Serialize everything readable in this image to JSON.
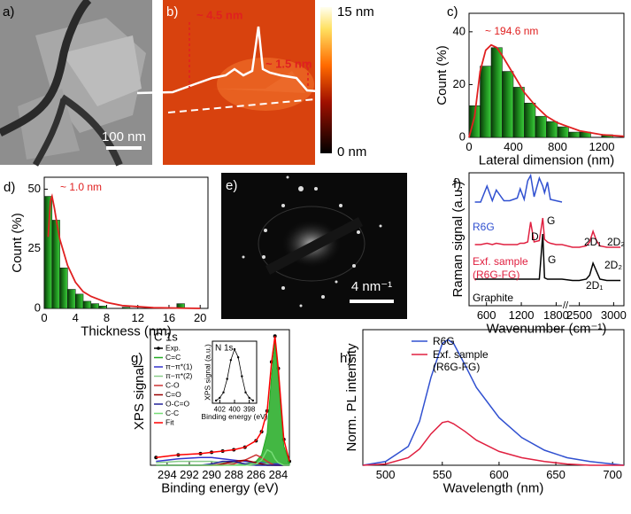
{
  "images": [
    {
      "label": "a)",
      "scale_bar": "100 nm"
    },
    {
      "label": "b)",
      "annotations": [
        "~ 4.5 nm",
        "~ 1.5 nm"
      ],
      "colorbar": [
        "15 nm",
        "0 nm"
      ]
    },
    {
      "label": "e)",
      "scale_bar": "4 nm⁻¹"
    }
  ],
  "chart_data": [
    {
      "type": "histogram",
      "panel_label": "c)",
      "xlabel": "Lateral dimension (nm)",
      "ylabel": "Count (%)",
      "bins": [
        0,
        100,
        200,
        300,
        400,
        500,
        600,
        700,
        800,
        900,
        1000,
        1100,
        1200,
        1300
      ],
      "values": [
        12,
        27,
        34,
        25,
        19,
        13,
        8,
        6,
        4,
        2,
        2,
        0,
        1
      ],
      "curve": {
        "color": "#e02020",
        "x": [
          0,
          50,
          100,
          150,
          200,
          250,
          300,
          400,
          500,
          600,
          700,
          800,
          1000,
          1200,
          1400
        ],
        "values": [
          0,
          8,
          25,
          33,
          35,
          34,
          31,
          24,
          17,
          12,
          8,
          5.5,
          2.5,
          1,
          0.4
        ]
      },
      "xlim": [
        0,
        1400
      ],
      "xticks": [
        0,
        400,
        800,
        1200
      ],
      "ylim": [
        0,
        47
      ],
      "yticks": [
        0,
        20,
        40
      ],
      "annotations": [
        {
          "text": "~ 194.6 nm",
          "color": "#e02020"
        }
      ]
    },
    {
      "type": "histogram",
      "panel_label": "d)",
      "xlabel": "Thickness (nm)",
      "ylabel": "Count (%)",
      "bins": [
        0,
        1,
        2,
        3,
        4,
        5,
        6,
        7,
        8,
        9,
        10,
        11,
        12,
        13,
        14,
        15,
        16,
        17,
        18
      ],
      "values": [
        47,
        37,
        17,
        8,
        6,
        3,
        2,
        1,
        0,
        0,
        0.5,
        0,
        0,
        0,
        0,
        0,
        0,
        2
      ],
      "curve": {
        "color": "#e02020",
        "x": [
          0.5,
          0.8,
          1,
          1.3,
          1.6,
          2,
          3,
          4,
          5,
          6,
          8,
          10,
          14,
          20
        ],
        "values": [
          30,
          45,
          47,
          42,
          36,
          29,
          18,
          11,
          7,
          5,
          2.5,
          1.2,
          0.3,
          0
        ]
      },
      "xlim": [
        0,
        21
      ],
      "xticks": [
        0,
        4,
        8,
        12,
        16,
        20
      ],
      "ylim": [
        0,
        55
      ],
      "yticks": [
        0,
        25,
        50
      ],
      "annotations": [
        {
          "text": "~ 1.0 nm",
          "color": "#e02020"
        }
      ]
    },
    {
      "type": "line",
      "panel_label": "f)",
      "xlabel": "Wavenumber (cm⁻¹)",
      "ylabel": "Raman signal (a.u.)",
      "x": [
        400,
        500,
        610,
        700,
        770,
        900,
        1000,
        1130,
        1180,
        1250,
        1310,
        1360,
        1420,
        1510,
        1570,
        1600,
        1650,
        1700,
        1800,
        1900,
        2400,
        2500,
        2600,
        2650,
        2700,
        2750,
        2800,
        2900,
        3000,
        3100
      ],
      "series": [
        {
          "color": "#3050d0",
          "values": [
            7.8,
            7.8,
            9.0,
            7.9,
            8.7,
            7.9,
            7.9,
            8.1,
            8.8,
            8.0,
            9.4,
            9.8,
            8.2,
            9.6,
            9.0,
            8.5,
            9.3,
            8.0,
            7.9,
            7.8,
            null,
            null,
            null,
            null,
            null,
            null,
            null,
            null,
            null,
            null
          ]
        },
        {
          "color": "#e02040",
          "values": [
            4.6,
            4.6,
            4.7,
            4.6,
            4.7,
            4.6,
            4.6,
            4.6,
            4.7,
            4.7,
            4.8,
            6.3,
            4.8,
            4.9,
            6.6,
            5.0,
            4.8,
            4.7,
            4.6,
            4.6,
            4.4,
            4.4,
            4.5,
            4.8,
            5.6,
            4.9,
            4.5,
            4.4,
            4.4,
            4.4
          ]
        },
        {
          "color": "#000000",
          "values": [
            2,
            2,
            2,
            2,
            2,
            2,
            2,
            2,
            2,
            2,
            2,
            2,
            2,
            2,
            5.4,
            2.1,
            2,
            2,
            2,
            2,
            1.9,
            1.9,
            2,
            2.3,
            3.2,
            2.6,
            2,
            1.9,
            1.9,
            1.9
          ]
        }
      ],
      "xlim": [
        300,
        3150
      ],
      "xbreak": [
        1900,
        2350
      ],
      "xticks": [
        600,
        1200,
        1800,
        2500,
        3000
      ],
      "ylim": [
        0,
        10
      ],
      "annotations": [
        {
          "text": "R6G",
          "color": "#3050d0"
        },
        {
          "text": "D",
          "color": "#000000"
        },
        {
          "text": "G",
          "color": "#000000"
        },
        {
          "text": "2D₁",
          "color": "#000000"
        },
        {
          "text": "2D₂",
          "color": "#000000"
        },
        {
          "text": "Exf. sample",
          "color": "#e02040"
        },
        {
          "text": "(R6G-FG)",
          "color": "#e02040"
        },
        {
          "text": "G",
          "color": "#000000"
        },
        {
          "text": "2D₂",
          "color": "#000000"
        },
        {
          "text": "2D₁",
          "color": "#000000"
        },
        {
          "text": "Graphite",
          "color": "#000000"
        }
      ]
    },
    {
      "type": "line",
      "panel_label": "g)",
      "title": "C 1s",
      "xlabel": "Binding energy (eV)",
      "ylabel": "XPS signal",
      "x": [
        295,
        293,
        291,
        290,
        289,
        288,
        287,
        286,
        285.5,
        285,
        284.6,
        284.3,
        284,
        283.5,
        283
      ],
      "series": [
        {
          "name": "Exp.",
          "color": "#000000",
          "marker": true,
          "values": [
            0.6,
            0.8,
            0.9,
            1.0,
            1.1,
            1.2,
            1.4,
            1.9,
            2.6,
            4.2,
            8.0,
            10.0,
            7.5,
            2.0,
            0.3
          ]
        },
        {
          "name": "C=C",
          "color": "#22aa22",
          "fill": true,
          "values": [
            0,
            0,
            0,
            0,
            0,
            0,
            0.1,
            0.3,
            0.8,
            2.5,
            7.0,
            9.5,
            6.8,
            1.5,
            0.2
          ]
        },
        {
          "name": "π−π*(1)",
          "color": "#3333cc",
          "values": [
            0.3,
            0.5,
            0.6,
            0.6,
            0.5,
            0.4,
            0.3,
            0.2,
            0.2,
            0.1,
            0.1,
            0.1,
            0.1,
            0,
            0
          ]
        },
        {
          "name": "π−π*(2)",
          "color": "#88cc88",
          "values": [
            0.2,
            0.3,
            0.3,
            0.3,
            0.2,
            0.2,
            0.1,
            0.1,
            0.1,
            0.1,
            0,
            0,
            0,
            0,
            0
          ]
        },
        {
          "name": "C-O",
          "color": "#cc3333",
          "values": [
            0,
            0,
            0,
            0,
            0,
            0.1,
            0.4,
            0.8,
            0.6,
            0.3,
            0.1,
            0,
            0,
            0,
            0
          ]
        },
        {
          "name": "C=O",
          "color": "#990000",
          "values": [
            0,
            0,
            0,
            0,
            0.1,
            0.3,
            0.4,
            0.2,
            0.1,
            0,
            0,
            0,
            0,
            0,
            0
          ]
        },
        {
          "name": "O-C=O",
          "color": "#222299",
          "values": [
            0,
            0,
            0,
            0.1,
            0.3,
            0.3,
            0.1,
            0,
            0,
            0,
            0,
            0,
            0,
            0,
            0
          ]
        },
        {
          "name": "C-C",
          "color": "#77dd77",
          "values": [
            0,
            0,
            0,
            0,
            0,
            0,
            0,
            0.1,
            0.4,
            1.2,
            1.0,
            0.5,
            0.2,
            0,
            0
          ]
        },
        {
          "name": "Fit",
          "color": "#ff0000",
          "values": [
            0.6,
            0.8,
            0.9,
            1.0,
            1.1,
            1.2,
            1.4,
            1.9,
            2.6,
            4.2,
            8.0,
            10.0,
            7.5,
            2.0,
            0.3
          ]
        }
      ],
      "xlim": [
        295.5,
        283
      ],
      "xticks": [
        294,
        292,
        290,
        288,
        286,
        284
      ],
      "ylim": [
        0,
        10.5
      ],
      "inset": {
        "title": "N 1s",
        "xlabel": "Binding energy (eV)",
        "ylabel": "XPS signal (a.u.)",
        "x": [
          402.5,
          402,
          401.5,
          401,
          400.5,
          400,
          399.5,
          399,
          398.5,
          398,
          397.5
        ],
        "series": [
          {
            "color": "#000000",
            "marker": true,
            "values": [
              0.1,
              0.2,
              0.4,
              0.9,
              1.6,
              2.0,
              1.7,
              1.0,
              0.4,
              0.2,
              0.1
            ]
          }
        ],
        "xlim": [
          403,
          397
        ],
        "xticks": [
          402,
          400,
          398
        ],
        "ylim": [
          0,
          2.3
        ]
      }
    },
    {
      "type": "line",
      "panel_label": "h)",
      "xlabel": "Wavelength (nm)",
      "ylabel": "Norm. PL intensity",
      "x": [
        480,
        500,
        520,
        530,
        540,
        550,
        555,
        560,
        570,
        580,
        600,
        620,
        640,
        660,
        680,
        700,
        710
      ],
      "series": [
        {
          "name": "R6G",
          "color": "#3050d0",
          "values": [
            0,
            0.03,
            0.15,
            0.35,
            0.7,
            0.97,
            1.0,
            0.97,
            0.8,
            0.62,
            0.38,
            0.22,
            0.12,
            0.06,
            0.03,
            0.01,
            0
          ]
        },
        {
          "name": "Exf. sample (R6G-FG)",
          "color": "#e02040",
          "values": [
            0,
            0.01,
            0.06,
            0.13,
            0.25,
            0.34,
            0.35,
            0.33,
            0.27,
            0.2,
            0.11,
            0.06,
            0.03,
            0.01,
            0,
            0,
            0
          ]
        }
      ],
      "xlim": [
        480,
        710
      ],
      "xticks": [
        500,
        550,
        600,
        650,
        700
      ],
      "ylim": [
        0,
        1.08
      ]
    }
  ]
}
